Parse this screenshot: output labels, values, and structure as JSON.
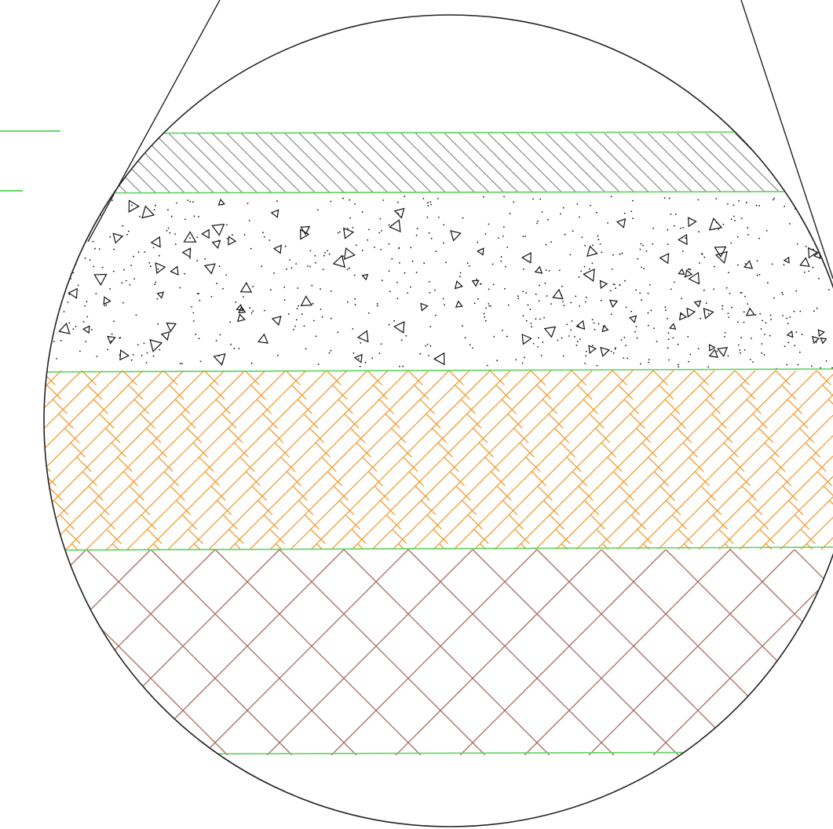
{
  "diagram": {
    "kind": "pavement-layer-section-detail",
    "colors": {
      "background": "#ffffff",
      "outline": "#222222",
      "layer_boundary": "#5fd35f",
      "leader_lines": "#33cc33",
      "hatch_gray": "#7a7a7a",
      "concrete_marks": "#111111",
      "hatch_orange": "#f29a2e",
      "hatch_brown": "#a56a5c"
    },
    "layers": [
      {
        "id": "surface",
        "pattern": "diagonal-single-hatch",
        "color": "hatch_gray"
      },
      {
        "id": "concrete",
        "pattern": "stipple-with-triangles",
        "color": "concrete_marks"
      },
      {
        "id": "blockwork",
        "pattern": "staggered-crosshatch",
        "color": "hatch_orange"
      },
      {
        "id": "subgrade",
        "pattern": "diamond-crosshatch",
        "color": "hatch_brown"
      }
    ]
  }
}
